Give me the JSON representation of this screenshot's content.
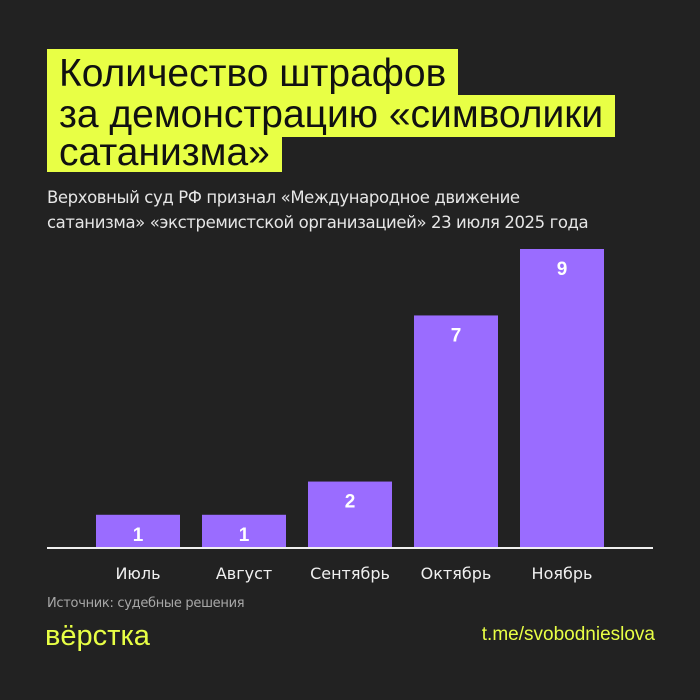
{
  "title_lines": [
    "Количество штрафов",
    "за демонстрацию «символики",
    "сатанизма»"
  ],
  "subtitle_lines": [
    "Верховный суд РФ признал «Международное движение",
    "сатанизма» «экстремистской организацией» 23 июля 2025 года"
  ],
  "source": "Источник: судебные решения",
  "logo": "вёрстка",
  "link": "t.me/svobodnieslova",
  "colors": {
    "background": "#222222",
    "accent": "#e8ff45",
    "bar": "#9a6cff"
  },
  "chart_data": {
    "type": "bar",
    "categories": [
      "Июль",
      "Август",
      "Сентябрь",
      "Октябрь",
      "Ноябрь"
    ],
    "values": [
      1,
      1,
      2,
      7,
      9
    ],
    "ylim": [
      0,
      9
    ],
    "grid": false
  }
}
